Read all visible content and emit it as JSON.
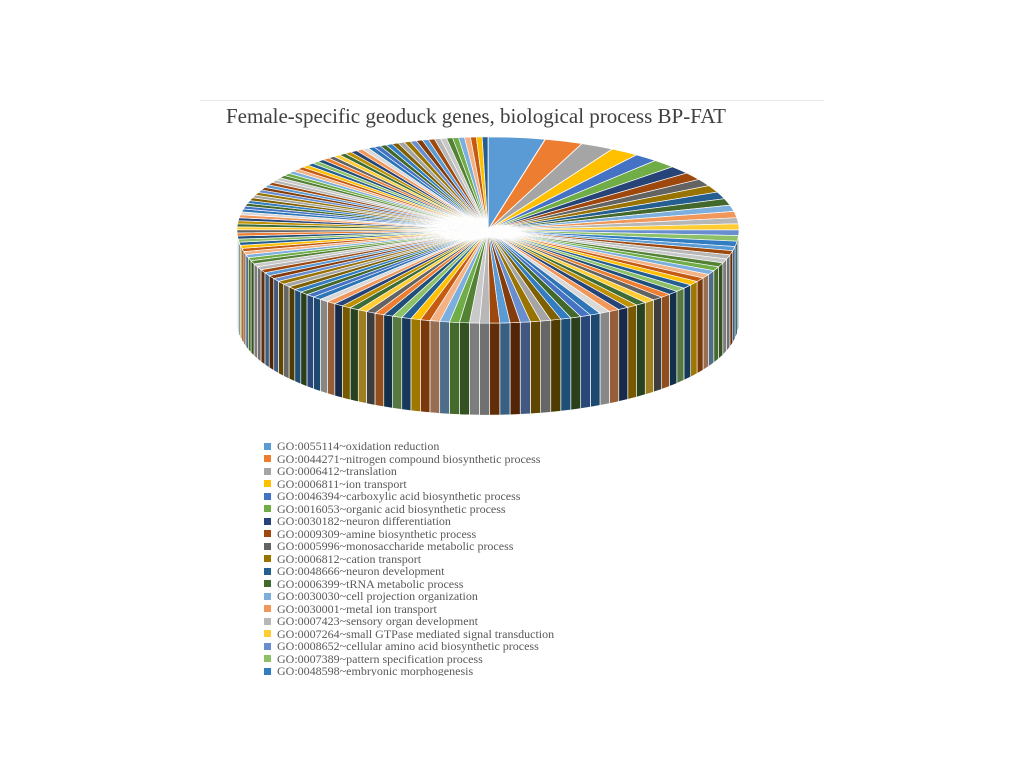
{
  "chart_data": {
    "type": "pie",
    "style": "3d-exploded-tilted",
    "title": "Female-specific geoduck genes, biological process BP-FAT",
    "slices_total_visible": 150,
    "legend_placement": "bottom",
    "categories": [
      "GO:0055114~oxidation reduction",
      "GO:0044271~nitrogen compound biosynthetic process",
      "GO:0006412~translation",
      "GO:0006811~ion transport",
      "GO:0046394~carboxylic acid biosynthetic process",
      "GO:0016053~organic acid biosynthetic process",
      "GO:0030182~neuron differentiation",
      "GO:0009309~amine biosynthetic process",
      "GO:0005996~monosaccharide metabolic process",
      "GO:0006812~cation transport",
      "GO:0048666~neuron development",
      "GO:0006399~tRNA metabolic process",
      "GO:0030030~cell projection organization",
      "GO:0030001~metal ion transport",
      "GO:0007423~sensory organ development",
      "GO:0007264~small GTPase mediated signal transduction",
      "GO:0008652~cellular amino acid biosynthetic process",
      "GO:0007389~pattern specification process",
      "GO:0048598~embryonic morphogenesis"
    ],
    "values": [
      6,
      4,
      3.5,
      3,
      2.5,
      2.5,
      2.3,
      2.2,
      2,
      2,
      2,
      1.9,
      1.8,
      1.8,
      1.7,
      1.7,
      1.6,
      1.6,
      1.5
    ],
    "colors": [
      "#5b9bd5",
      "#ed7d31",
      "#a5a5a5",
      "#ffc000",
      "#4472c4",
      "#70ad47",
      "#264478",
      "#9e480e",
      "#636363",
      "#997300",
      "#255e91",
      "#43682b",
      "#7cafdd",
      "#f1975a",
      "#b7b7b7",
      "#ffcd33",
      "#698ed0",
      "#8cc168",
      "#327dc2"
    ]
  }
}
